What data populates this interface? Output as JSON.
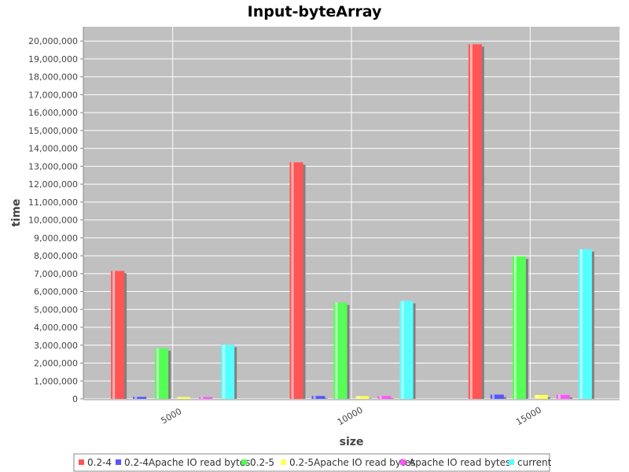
{
  "chart_data": {
    "type": "bar",
    "title": "Input-byteArray",
    "xlabel": "size",
    "ylabel": "time",
    "categories": [
      "5000",
      "10000",
      "15000"
    ],
    "ylim": [
      0,
      20800000
    ],
    "ytick_step": 1000000,
    "grid": true,
    "legend_placement": "bottom",
    "plot_background": "#c0c0c0",
    "series": [
      {
        "name": "0.2-4",
        "color": "#ff5555",
        "values": [
          7150000,
          13220000,
          19820000
        ]
      },
      {
        "name": "0.2-4Apache IO read bytes",
        "color": "#5555ff",
        "values": [
          110000,
          160000,
          240000
        ]
      },
      {
        "name": "0.2-5",
        "color": "#55ff55",
        "values": [
          2820000,
          5380000,
          7960000
        ]
      },
      {
        "name": "0.2-5Apache IO read bytes",
        "color": "#ffff55",
        "values": [
          100000,
          150000,
          220000
        ]
      },
      {
        "name": "Apache IO read bytes",
        "color": "#ff55ff",
        "values": [
          100000,
          160000,
          220000
        ]
      },
      {
        "name": "current",
        "color": "#55ffff",
        "values": [
          3020000,
          5470000,
          8360000
        ]
      }
    ]
  }
}
